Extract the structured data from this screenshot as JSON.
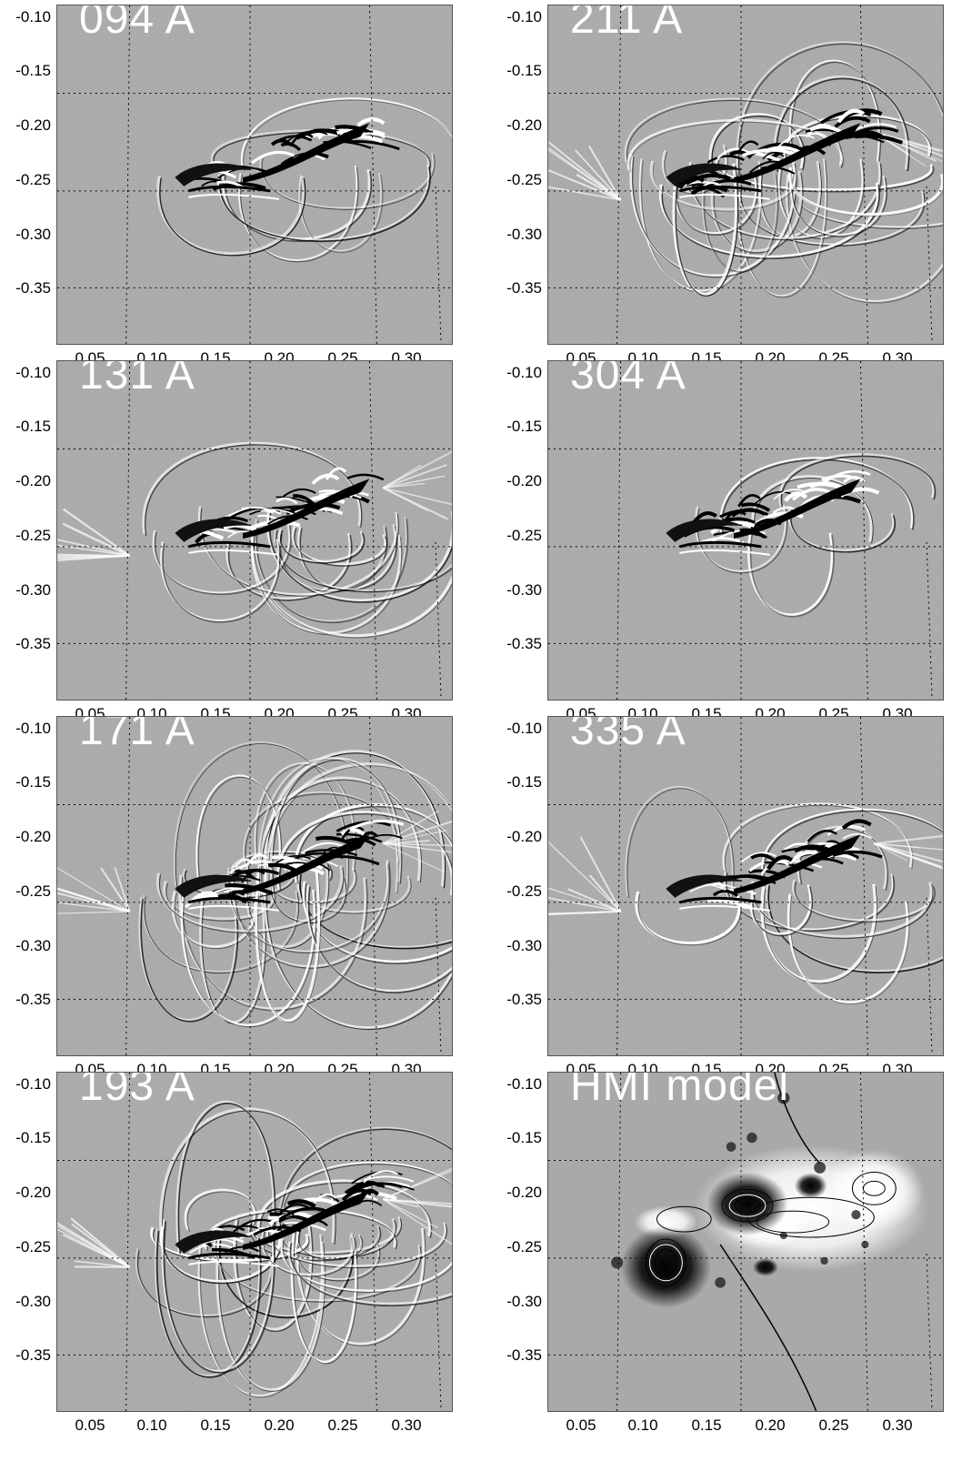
{
  "panels": [
    {
      "label": "094 A",
      "type": "euv",
      "strength": 0.55,
      "loops": 8,
      "core_dark": true
    },
    {
      "label": "211 A",
      "type": "euv",
      "strength": 1.0,
      "loops": 26,
      "core_dark": true
    },
    {
      "label": "131 A",
      "type": "euv",
      "strength": 0.75,
      "loops": 14,
      "core_dark": true
    },
    {
      "label": "304 A",
      "type": "euv",
      "strength": 0.6,
      "loops": 6,
      "core_dark": true
    },
    {
      "label": "171 A",
      "type": "euv",
      "strength": 1.2,
      "loops": 32,
      "core_dark": true
    },
    {
      "label": "335 A",
      "type": "euv",
      "strength": 0.8,
      "loops": 12,
      "core_dark": true
    },
    {
      "label": "193 A",
      "type": "euv",
      "strength": 1.1,
      "loops": 28,
      "core_dark": true
    },
    {
      "label": "HMI model",
      "type": "magnetogram",
      "strength": 1.0,
      "loops": 0,
      "core_dark": false
    }
  ],
  "axes": {
    "x_ticks": [
      "0.05",
      "0.10",
      "0.15",
      "0.20",
      "0.25",
      "0.30"
    ],
    "y_ticks": [
      "-0.10",
      "-0.15",
      "-0.20",
      "-0.25",
      "-0.30",
      "-0.35"
    ]
  },
  "colors": {
    "panel_background": "#a7a7a7",
    "grid_line": "#000000",
    "label_color": "#ffffff"
  }
}
